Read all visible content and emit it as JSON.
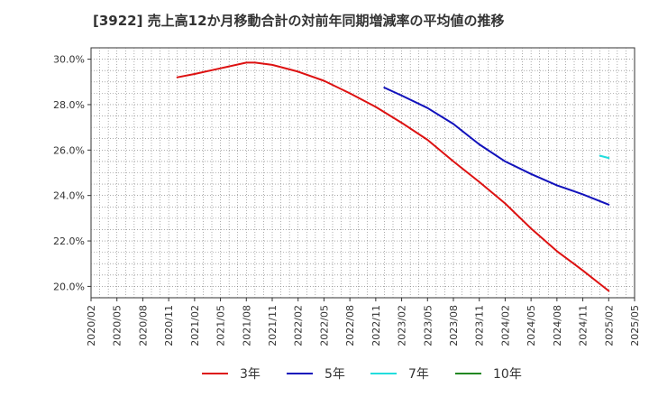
{
  "chart_data": {
    "type": "line",
    "title": "[3922]  売上高12か月移動合計の対前年同期増減率の平均値の推移",
    "xlabel": "",
    "ylabel": "",
    "ylim": [
      19.5,
      30.5
    ],
    "yticks": [
      "30.0%",
      "28.0%",
      "26.0%",
      "24.0%",
      "22.0%",
      "20.0%"
    ],
    "ytick_values": [
      30,
      28,
      26,
      24,
      22,
      20
    ],
    "x_tick_labels": [
      "2020/02",
      "2020/05",
      "2020/08",
      "2020/11",
      "2021/02",
      "2021/05",
      "2021/08",
      "2021/11",
      "2022/02",
      "2022/05",
      "2022/08",
      "2022/11",
      "2023/02",
      "2023/05",
      "2023/08",
      "2023/11",
      "2024/02",
      "2024/05",
      "2024/08",
      "2024/11",
      "2025/02",
      "2025/05"
    ],
    "grid": true,
    "legend_position": "bottom",
    "series": [
      {
        "name": "3年",
        "color": "#dd1111",
        "points": [
          [
            "2020/12",
            29.2
          ],
          [
            "2021/02",
            29.35
          ],
          [
            "2021/05",
            29.6
          ],
          [
            "2021/08",
            29.85
          ],
          [
            "2021/09",
            29.85
          ],
          [
            "2021/11",
            29.75
          ],
          [
            "2022/02",
            29.45
          ],
          [
            "2022/05",
            29.05
          ],
          [
            "2022/08",
            28.5
          ],
          [
            "2022/11",
            27.9
          ],
          [
            "2023/02",
            27.2
          ],
          [
            "2023/05",
            26.45
          ],
          [
            "2023/08",
            25.5
          ],
          [
            "2023/11",
            24.6
          ],
          [
            "2024/02",
            23.65
          ],
          [
            "2024/05",
            22.55
          ],
          [
            "2024/08",
            21.55
          ],
          [
            "2024/11",
            20.7
          ],
          [
            "2025/02",
            19.8
          ]
        ]
      },
      {
        "name": "5年",
        "color": "#1111bb",
        "points": [
          [
            "2022/12",
            28.75
          ],
          [
            "2023/02",
            28.4
          ],
          [
            "2023/05",
            27.85
          ],
          [
            "2023/08",
            27.15
          ],
          [
            "2023/11",
            26.25
          ],
          [
            "2024/02",
            25.5
          ],
          [
            "2024/05",
            24.95
          ],
          [
            "2024/08",
            24.45
          ],
          [
            "2024/11",
            24.05
          ],
          [
            "2025/02",
            23.6
          ]
        ]
      },
      {
        "name": "7年",
        "color": "#22dddd",
        "points": [
          [
            "2025/01",
            25.75
          ],
          [
            "2025/02",
            25.65
          ]
        ]
      },
      {
        "name": "10年",
        "color": "#228822",
        "points": []
      }
    ]
  }
}
